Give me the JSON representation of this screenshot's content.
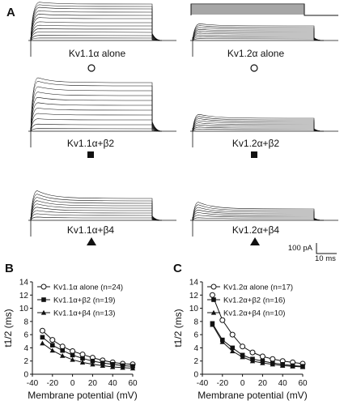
{
  "panel_a": {
    "letter": "A",
    "conditions": [
      {
        "label": "Kv1.1α alone",
        "symbol": "open-circle",
        "column": 0,
        "row": 0
      },
      {
        "label": "Kv1.2α alone",
        "symbol": "open-circle",
        "column": 1,
        "row": 0
      },
      {
        "label": "Kv1.1α+β2",
        "symbol": "filled-square",
        "column": 0,
        "row": 1
      },
      {
        "label": "Kv1.2α+β2",
        "symbol": "filled-square",
        "column": 1,
        "row": 1
      },
      {
        "label": "Kv1.1α+β4",
        "symbol": "filled-triangle",
        "column": 0,
        "row": 2
      },
      {
        "label": "Kv1.2α+β4",
        "symbol": "filled-triangle",
        "column": 1,
        "row": 2
      }
    ],
    "scale_bar": {
      "current": "100 pA",
      "time": "10 ms"
    }
  },
  "chart_data": [
    {
      "panel": "B",
      "type": "line",
      "ylabel": "t1/2 (ms)",
      "xlabel": "Membrane potential (mV)",
      "xticks": [
        "-40",
        "-20",
        "0",
        "20",
        "40",
        "60"
      ],
      "yticks": [
        "0",
        "2",
        "4",
        "6",
        "8",
        "10",
        "12",
        "14"
      ],
      "xlim": [
        -40,
        60
      ],
      "ylim": [
        0,
        14
      ],
      "x": [
        -30,
        -20,
        -10,
        0,
        10,
        20,
        30,
        40,
        50,
        60
      ],
      "series": [
        {
          "name": "Kv1.1α alone (n=24)",
          "symbol": "open-circle",
          "values": [
            6.6,
            5.2,
            4.2,
            3.5,
            3.0,
            2.5,
            2.1,
            1.8,
            1.6,
            1.5
          ]
        },
        {
          "name": "Kv1.1α+β2 (n=19)",
          "symbol": "filled-square",
          "values": [
            5.6,
            4.4,
            3.6,
            2.9,
            2.4,
            2.0,
            1.7,
            1.5,
            1.3,
            1.2
          ]
        },
        {
          "name": "Kv1.1α+β4 (n=13)",
          "symbol": "filled-triangle",
          "values": [
            4.7,
            3.6,
            2.8,
            2.2,
            1.8,
            1.5,
            1.3,
            1.1,
            1.0,
            0.9
          ]
        }
      ]
    },
    {
      "panel": "C",
      "type": "line",
      "ylabel": "t1/2 (ms)",
      "xlabel": "Membrane potential (mV)",
      "xticks": [
        "-40",
        "-20",
        "0",
        "20",
        "40",
        "60"
      ],
      "yticks": [
        "0",
        "2",
        "4",
        "6",
        "8",
        "10",
        "12",
        "14"
      ],
      "xlim": [
        -40,
        60
      ],
      "ylim": [
        0,
        14
      ],
      "x": [
        -30,
        -20,
        -10,
        0,
        10,
        20,
        30,
        40,
        50,
        60
      ],
      "series": [
        {
          "name": "Kv1.2α alone (n=17)",
          "symbol": "open-circle",
          "values": [
            12.0,
            8.2,
            6.0,
            4.2,
            3.3,
            2.7,
            2.3,
            2.0,
            1.8,
            1.6
          ]
        },
        {
          "name": "Kv1.2α+β2 (n=16)",
          "symbol": "filled-square",
          "values": [
            7.7,
            5.2,
            4.0,
            2.9,
            2.3,
            2.0,
            1.7,
            1.5,
            1.3,
            1.2
          ]
        },
        {
          "name": "Kv1.2α+β4 (n=10)",
          "symbol": "filled-triangle",
          "values": [
            7.5,
            4.9,
            3.5,
            2.6,
            2.0,
            1.7,
            1.5,
            1.3,
            1.2,
            1.1
          ]
        }
      ]
    }
  ]
}
